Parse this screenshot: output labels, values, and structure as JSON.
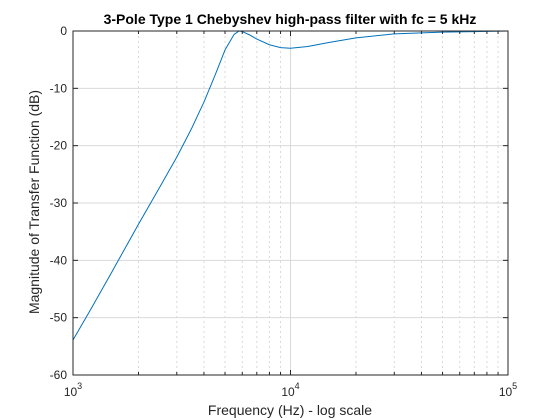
{
  "chart_data": {
    "type": "line",
    "title": "3-Pole Type 1 Chebyshev high-pass filter with fc = 5 kHz",
    "xlabel": "Frequency (Hz) - log scale",
    "ylabel": "Magnitude of Transfer Function (dB)",
    "x_scale": "log",
    "xlim": [
      1000,
      100000
    ],
    "ylim": [
      -60,
      0
    ],
    "x_ticks": [
      {
        "value": 1000,
        "base": "10",
        "exp": "3"
      },
      {
        "value": 10000,
        "base": "10",
        "exp": "4"
      },
      {
        "value": 100000,
        "base": "10",
        "exp": "5"
      }
    ],
    "y_ticks": [
      {
        "value": 0,
        "label": "0"
      },
      {
        "value": -10,
        "label": "-10"
      },
      {
        "value": -20,
        "label": "-20"
      },
      {
        "value": -30,
        "label": "-30"
      },
      {
        "value": -40,
        "label": "-40"
      },
      {
        "value": -50,
        "label": "-50"
      },
      {
        "value": -60,
        "label": "-60"
      }
    ],
    "grid": true,
    "minor_grid_x": true,
    "colors": {
      "line": "#0072BD",
      "grid": "#d9d9d9",
      "axes": "#262626"
    },
    "series": [
      {
        "x": [
          1000,
          1200,
          1500,
          2000,
          2500,
          3000,
          3500,
          4000,
          4500,
          5000,
          5500,
          5800,
          6000,
          6500,
          7000,
          8000,
          9000,
          10000,
          12000,
          15000,
          20000,
          30000,
          50000,
          70000,
          100000
        ],
        "y": [
          -53.9,
          -48.7,
          -42.2,
          -33.7,
          -27.3,
          -22.0,
          -17.1,
          -12.4,
          -7.7,
          -3.3,
          -0.6,
          0.0,
          -0.1,
          -0.7,
          -1.4,
          -2.4,
          -2.9,
          -3.0,
          -2.7,
          -2.0,
          -1.2,
          -0.5,
          -0.2,
          -0.1,
          0.0
        ]
      }
    ]
  }
}
